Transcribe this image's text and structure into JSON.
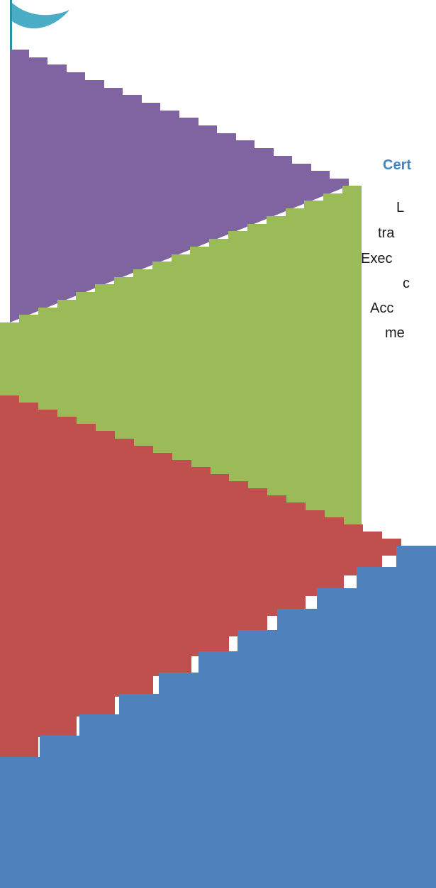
{
  "heading": "Cert",
  "body_lines": [
    "L",
    "tra",
    "Exec",
    "c",
    "Acc",
    "me"
  ],
  "colors": {
    "purple": "#8064a2",
    "green": "#9bbb59",
    "red": "#c0504d",
    "blue": "#4f81bd",
    "flag": "#4bacc6",
    "pole": "#2b91a8"
  }
}
